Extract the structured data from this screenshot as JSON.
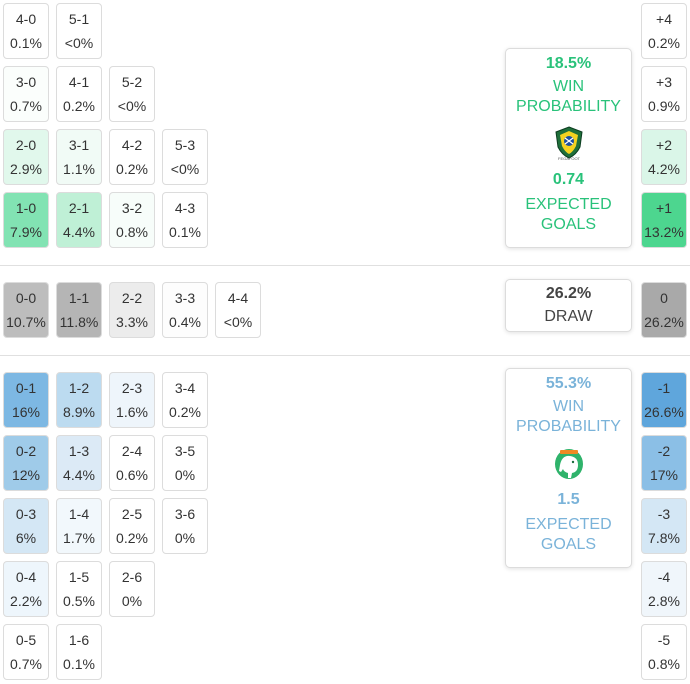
{
  "home_scores": [
    {
      "score": "4-0",
      "pct": "0.1%"
    },
    {
      "score": "5-1",
      "pct": "<0%"
    },
    {
      "score": "3-0",
      "pct": "0.7%"
    },
    {
      "score": "4-1",
      "pct": "0.2%"
    },
    {
      "score": "5-2",
      "pct": "<0%"
    },
    {
      "score": "2-0",
      "pct": "2.9%"
    },
    {
      "score": "3-1",
      "pct": "1.1%"
    },
    {
      "score": "4-2",
      "pct": "0.2%"
    },
    {
      "score": "5-3",
      "pct": "<0%"
    },
    {
      "score": "1-0",
      "pct": "7.9%"
    },
    {
      "score": "2-1",
      "pct": "4.4%"
    },
    {
      "score": "3-2",
      "pct": "0.8%"
    },
    {
      "score": "4-3",
      "pct": "0.1%"
    }
  ],
  "draw_scores": [
    {
      "score": "0-0",
      "pct": "10.7%"
    },
    {
      "score": "1-1",
      "pct": "11.8%"
    },
    {
      "score": "2-2",
      "pct": "3.3%"
    },
    {
      "score": "3-3",
      "pct": "0.4%"
    },
    {
      "score": "4-4",
      "pct": "<0%"
    }
  ],
  "away_scores": [
    {
      "score": "0-1",
      "pct": "16%"
    },
    {
      "score": "1-2",
      "pct": "8.9%"
    },
    {
      "score": "2-3",
      "pct": "1.6%"
    },
    {
      "score": "3-4",
      "pct": "0.2%"
    },
    {
      "score": "0-2",
      "pct": "12%"
    },
    {
      "score": "1-3",
      "pct": "4.4%"
    },
    {
      "score": "2-4",
      "pct": "0.6%"
    },
    {
      "score": "3-5",
      "pct": "0%"
    },
    {
      "score": "0-3",
      "pct": "6%"
    },
    {
      "score": "1-4",
      "pct": "1.7%"
    },
    {
      "score": "2-5",
      "pct": "0.2%"
    },
    {
      "score": "3-6",
      "pct": "0%"
    },
    {
      "score": "0-4",
      "pct": "2.2%"
    },
    {
      "score": "1-5",
      "pct": "0.5%"
    },
    {
      "score": "2-6",
      "pct": "0%"
    },
    {
      "score": "0-5",
      "pct": "0.7%"
    },
    {
      "score": "1-6",
      "pct": "0.1%"
    }
  ],
  "margins": [
    {
      "margin": "+4",
      "pct": "0.2%"
    },
    {
      "margin": "+3",
      "pct": "0.9%"
    },
    {
      "margin": "+2",
      "pct": "4.2%"
    },
    {
      "margin": "+1",
      "pct": "13.2%"
    },
    {
      "margin": "0",
      "pct": "26.2%"
    },
    {
      "margin": "-1",
      "pct": "26.6%"
    },
    {
      "margin": "-2",
      "pct": "17%"
    },
    {
      "margin": "-3",
      "pct": "7.8%"
    },
    {
      "margin": "-4",
      "pct": "2.8%"
    },
    {
      "margin": "-5",
      "pct": "0.8%"
    }
  ],
  "home_card": {
    "win_pct": "18.5%",
    "win_label_1": "WIN",
    "win_label_2": "PROBABILITY",
    "xg": "0.74",
    "xg_label_1": "EXPECTED",
    "xg_label_2": "GOALS",
    "logo": "fegafoot-crest-icon",
    "logo_text": "FEGAFOOT"
  },
  "draw_card": {
    "pct": "26.2%",
    "label": "DRAW"
  },
  "away_card": {
    "win_pct": "55.3%",
    "win_label_1": "WIN",
    "win_label_2": "PROBABILITY",
    "xg": "1.5",
    "xg_label_1": "EXPECTED",
    "xg_label_2": "GOALS",
    "logo": "elephant-crest-icon"
  },
  "colors": {
    "home": "#29c27a",
    "away": "#7ab3d9",
    "draw": "#444444"
  }
}
